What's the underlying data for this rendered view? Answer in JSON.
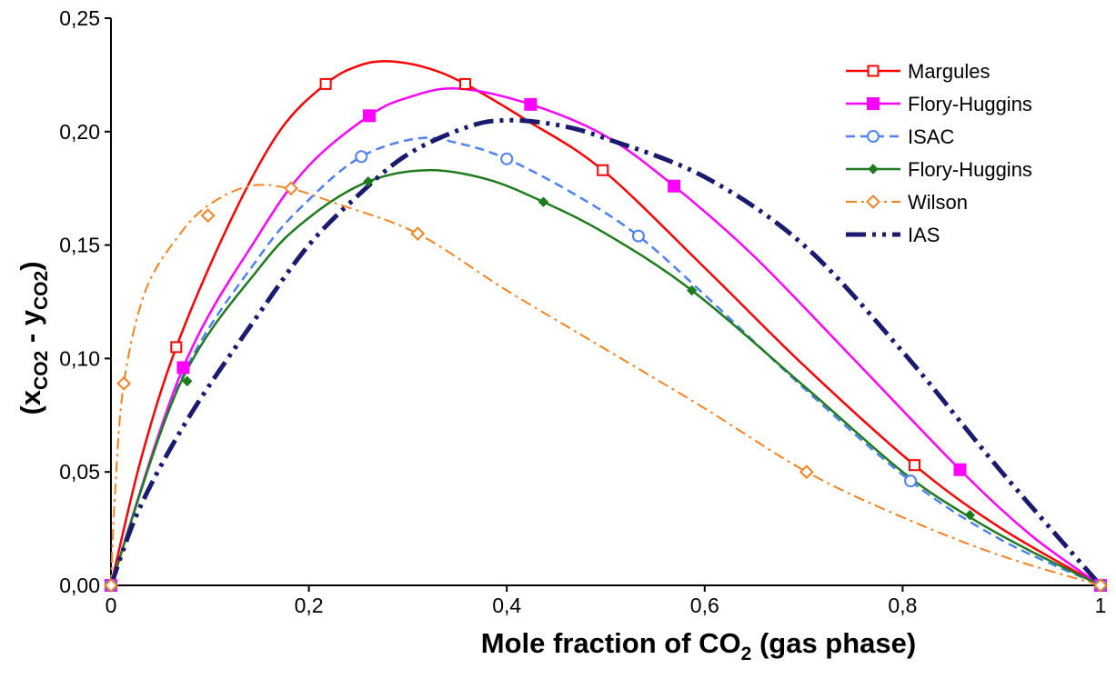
{
  "chart_data": {
    "type": "line",
    "title": "",
    "xlabel": {
      "pre": "Mole fraction of CO",
      "sub": "2",
      "post": " (gas phase)"
    },
    "ylabel": {
      "open": "(x",
      "sub1": "CO2",
      "mid": " - y",
      "sub2": "CO2",
      "close": ")"
    },
    "xlim": [
      0,
      1
    ],
    "ylim": [
      0,
      0.25
    ],
    "x_ticks": [
      {
        "value": 0,
        "label": "0"
      },
      {
        "value": 0.2,
        "label": "0,2"
      },
      {
        "value": 0.4,
        "label": "0,4"
      },
      {
        "value": 0.6,
        "label": "0,6"
      },
      {
        "value": 0.8,
        "label": "0,8"
      },
      {
        "value": 1,
        "label": "1"
      }
    ],
    "y_ticks": [
      {
        "value": 0,
        "label": "0,00"
      },
      {
        "value": 0.05,
        "label": "0,05"
      },
      {
        "value": 0.1,
        "label": "0,10"
      },
      {
        "value": 0.15,
        "label": "0,15"
      },
      {
        "value": 0.2,
        "label": "0,20"
      },
      {
        "value": 0.25,
        "label": "0,25"
      }
    ],
    "grid": false,
    "legend_position": "top-right",
    "series": [
      {
        "name": "Margules",
        "color": "#ff0000",
        "dash": "solid",
        "marker": "open-square",
        "line": [
          [
            0,
            0
          ],
          [
            0.03,
            0.055
          ],
          [
            0.066,
            0.105
          ],
          [
            0.12,
            0.16
          ],
          [
            0.17,
            0.2
          ],
          [
            0.217,
            0.221
          ],
          [
            0.25,
            0.229
          ],
          [
            0.28,
            0.231
          ],
          [
            0.32,
            0.228
          ],
          [
            0.358,
            0.221
          ],
          [
            0.42,
            0.205
          ],
          [
            0.497,
            0.183
          ],
          [
            0.6,
            0.14
          ],
          [
            0.7,
            0.097
          ],
          [
            0.812,
            0.053
          ],
          [
            0.9,
            0.025
          ],
          [
            1,
            0
          ]
        ],
        "markers": [
          [
            0,
            0
          ],
          [
            0.066,
            0.105
          ],
          [
            0.217,
            0.221
          ],
          [
            0.358,
            0.221
          ],
          [
            0.497,
            0.183
          ],
          [
            0.812,
            0.053
          ],
          [
            1,
            0
          ]
        ]
      },
      {
        "name": "Flory-Huggins",
        "color": "#ff00ff",
        "dash": "solid",
        "marker": "filled-square",
        "line": [
          [
            0,
            0
          ],
          [
            0.073,
            0.096
          ],
          [
            0.15,
            0.155
          ],
          [
            0.2,
            0.185
          ],
          [
            0.261,
            0.207
          ],
          [
            0.3,
            0.215
          ],
          [
            0.35,
            0.219
          ],
          [
            0.424,
            0.212
          ],
          [
            0.5,
            0.198
          ],
          [
            0.569,
            0.176
          ],
          [
            0.65,
            0.145
          ],
          [
            0.75,
            0.1
          ],
          [
            0.858,
            0.051
          ],
          [
            0.93,
            0.022
          ],
          [
            1,
            0
          ]
        ],
        "markers": [
          [
            0,
            0
          ],
          [
            0.073,
            0.096
          ],
          [
            0.261,
            0.207
          ],
          [
            0.424,
            0.212
          ],
          [
            0.569,
            0.176
          ],
          [
            0.858,
            0.051
          ],
          [
            1,
            0
          ]
        ]
      },
      {
        "name": "ISAC",
        "color": "#4f81f0",
        "dash": "dashed",
        "marker": "open-circle",
        "line": [
          [
            0,
            0
          ],
          [
            0.07,
            0.09
          ],
          [
            0.15,
            0.145
          ],
          [
            0.2,
            0.17
          ],
          [
            0.253,
            0.189
          ],
          [
            0.31,
            0.197
          ],
          [
            0.35,
            0.195
          ],
          [
            0.4,
            0.188
          ],
          [
            0.47,
            0.172
          ],
          [
            0.533,
            0.154
          ],
          [
            0.6,
            0.128
          ],
          [
            0.7,
            0.087
          ],
          [
            0.808,
            0.046
          ],
          [
            0.9,
            0.02
          ],
          [
            1,
            0
          ]
        ],
        "markers": [
          [
            0,
            0
          ],
          [
            0.253,
            0.189
          ],
          [
            0.4,
            0.188
          ],
          [
            0.533,
            0.154
          ],
          [
            0.808,
            0.046
          ],
          [
            1,
            0
          ]
        ]
      },
      {
        "name": "Flory-Huggins",
        "color": "#1e7b1e",
        "dash": "solid",
        "marker": "small-diamond",
        "line": [
          [
            0,
            0
          ],
          [
            0.07,
            0.089
          ],
          [
            0.15,
            0.14
          ],
          [
            0.2,
            0.162
          ],
          [
            0.26,
            0.178
          ],
          [
            0.32,
            0.183
          ],
          [
            0.38,
            0.179
          ],
          [
            0.437,
            0.169
          ],
          [
            0.5,
            0.155
          ],
          [
            0.587,
            0.13
          ],
          [
            0.7,
            0.088
          ],
          [
            0.8,
            0.05
          ],
          [
            0.868,
            0.03
          ],
          [
            0.93,
            0.015
          ],
          [
            1,
            0
          ]
        ],
        "markers": [
          [
            0,
            0
          ],
          [
            0.077,
            0.09
          ],
          [
            0.26,
            0.178
          ],
          [
            0.437,
            0.169
          ],
          [
            0.587,
            0.13
          ],
          [
            0.868,
            0.031
          ],
          [
            1,
            0
          ]
        ]
      },
      {
        "name": "Wilson",
        "color": "#f58220",
        "dash": "dashdot",
        "marker": "open-diamond",
        "line": [
          [
            0,
            0
          ],
          [
            0.004,
            0.04
          ],
          [
            0.013,
            0.089
          ],
          [
            0.035,
            0.13
          ],
          [
            0.07,
            0.155
          ],
          [
            0.1,
            0.168
          ],
          [
            0.14,
            0.176
          ],
          [
            0.18,
            0.175
          ],
          [
            0.23,
            0.168
          ],
          [
            0.31,
            0.155
          ],
          [
            0.4,
            0.13
          ],
          [
            0.5,
            0.104
          ],
          [
            0.6,
            0.078
          ],
          [
            0.703,
            0.05
          ],
          [
            0.8,
            0.03
          ],
          [
            0.9,
            0.013
          ],
          [
            1,
            0
          ]
        ],
        "markers": [
          [
            0,
            0
          ],
          [
            0.013,
            0.089
          ],
          [
            0.098,
            0.163
          ],
          [
            0.182,
            0.175
          ],
          [
            0.31,
            0.155
          ],
          [
            0.703,
            0.05
          ],
          [
            1,
            0
          ]
        ]
      },
      {
        "name": "IAS",
        "color": "#1a1a6e",
        "dash": "dashdotdot",
        "marker": "none",
        "line": [
          [
            0,
            0
          ],
          [
            0.03,
            0.035
          ],
          [
            0.08,
            0.075
          ],
          [
            0.15,
            0.12
          ],
          [
            0.2,
            0.15
          ],
          [
            0.25,
            0.172
          ],
          [
            0.3,
            0.19
          ],
          [
            0.36,
            0.202
          ],
          [
            0.4,
            0.205
          ],
          [
            0.45,
            0.203
          ],
          [
            0.5,
            0.197
          ],
          [
            0.6,
            0.18
          ],
          [
            0.7,
            0.15
          ],
          [
            0.8,
            0.103
          ],
          [
            0.9,
            0.05
          ],
          [
            1,
            0
          ]
        ],
        "markers": []
      }
    ]
  }
}
